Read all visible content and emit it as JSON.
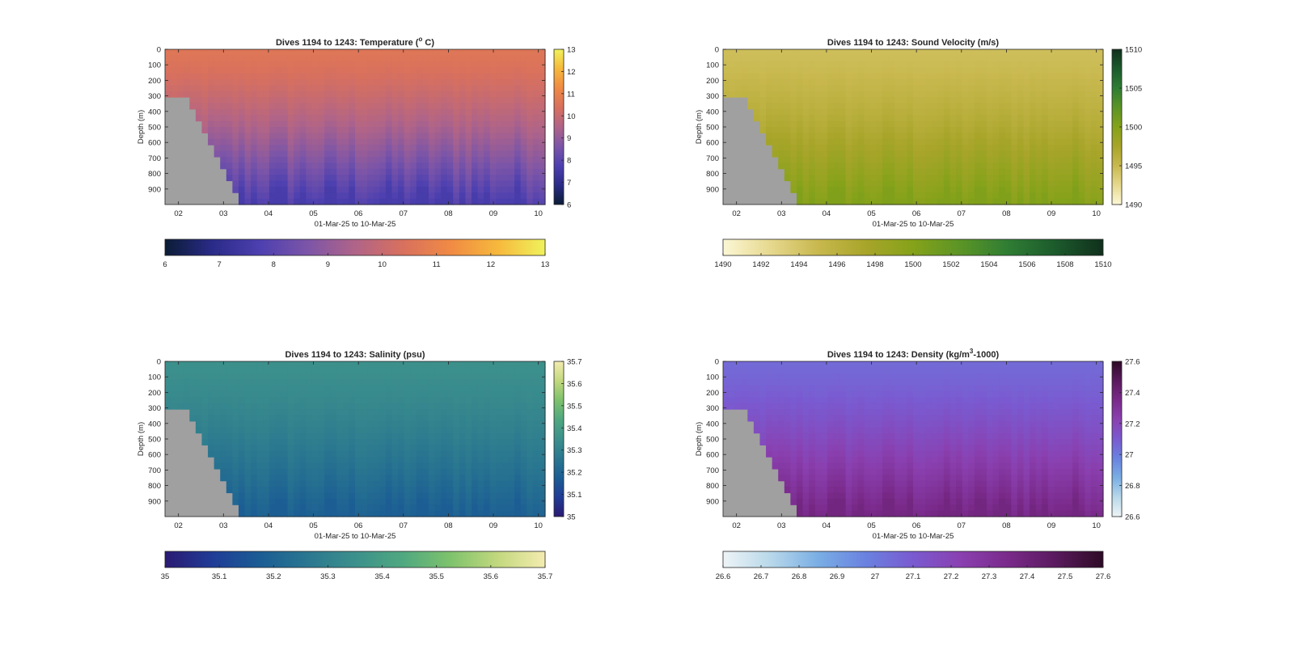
{
  "figure": {
    "xlabel": "01-Mar-25 to 10-Mar-25",
    "ylabel": "Depth (m)"
  },
  "chart_data": [
    {
      "type": "heatmap",
      "title": "Dives 1194 to 1243: Temperature (° C)",
      "title_parts": [
        "Dives 1194 to 1243: Temperature (",
        "o",
        " C)"
      ],
      "xlabel": "01-Mar-25 to 10-Mar-25",
      "ylabel": "Depth (m)",
      "x_ticks": [
        "02",
        "03",
        "04",
        "05",
        "06",
        "07",
        "08",
        "09",
        "10"
      ],
      "x_range": [
        1.7,
        10.15
      ],
      "y_ticks": [
        0,
        100,
        200,
        300,
        400,
        500,
        600,
        700,
        800,
        900
      ],
      "y_range": [
        0,
        1000
      ],
      "colorbar_range": [
        6,
        13
      ],
      "colorbar_ticks": [
        6,
        7,
        8,
        9,
        10,
        11,
        12,
        13
      ],
      "horizontal_colorbar_ticks": [
        6,
        7,
        8,
        9,
        10,
        11,
        12,
        13
      ],
      "colormap": [
        "#0b1c35",
        "#2a2b88",
        "#4d40b0",
        "#7c55a8",
        "#b06488",
        "#d8705e",
        "#f08a44",
        "#f6b83c",
        "#f0f25c"
      ],
      "surface_value": 10.6,
      "deep_value": 7.6,
      "no_data_color": "#a0a0a0"
    },
    {
      "type": "heatmap",
      "title": "Dives 1194 to 1243: Sound Velocity (m/s)",
      "title_parts": [
        "Dives 1194 to 1243: Sound Velocity (m/s)",
        "",
        ""
      ],
      "xlabel": "01-Mar-25 to 10-Mar-25",
      "ylabel": "Depth (m)",
      "x_ticks": [
        "02",
        "03",
        "04",
        "05",
        "06",
        "07",
        "08",
        "09",
        "10"
      ],
      "x_range": [
        1.7,
        10.15
      ],
      "y_ticks": [
        0,
        100,
        200,
        300,
        400,
        500,
        600,
        700,
        800,
        900
      ],
      "y_range": [
        0,
        1000
      ],
      "colorbar_range": [
        1490,
        1510
      ],
      "colorbar_ticks": [
        1490,
        1495,
        1500,
        1505,
        1510
      ],
      "horizontal_colorbar_ticks": [
        1490,
        1492,
        1494,
        1496,
        1498,
        1500,
        1502,
        1504,
        1506,
        1508,
        1510
      ],
      "colormap": [
        "#fcf7d5",
        "#e6d88e",
        "#c8b84e",
        "#a8a52a",
        "#85a21a",
        "#5b9426",
        "#2f7d34",
        "#1c5a2c",
        "#10301c"
      ],
      "surface_value": 1494.5,
      "deep_value": 1500.3,
      "no_data_color": "#a0a0a0"
    },
    {
      "type": "heatmap",
      "title": "Dives 1194 to 1243: Salinity (psu)",
      "title_parts": [
        "Dives 1194 to 1243: Salinity (psu)",
        "",
        ""
      ],
      "xlabel": "01-Mar-25 to 10-Mar-25",
      "ylabel": "Depth (m)",
      "x_ticks": [
        "02",
        "03",
        "04",
        "05",
        "06",
        "07",
        "08",
        "09",
        "10"
      ],
      "x_range": [
        1.7,
        10.15
      ],
      "y_ticks": [
        0,
        100,
        200,
        300,
        400,
        500,
        600,
        700,
        800,
        900
      ],
      "y_range": [
        0,
        1000
      ],
      "colorbar_range": [
        35,
        35.7
      ],
      "colorbar_ticks": [
        35,
        35.1,
        35.2,
        35.3,
        35.4,
        35.5,
        35.6,
        35.7
      ],
      "horizontal_colorbar_ticks": [
        35,
        35.1,
        35.2,
        35.3,
        35.4,
        35.5,
        35.6,
        35.7
      ],
      "colormap": [
        "#2a1a72",
        "#203c96",
        "#1b5d94",
        "#2a7790",
        "#3c908c",
        "#4fa880",
        "#7ec26c",
        "#c2d87e",
        "#f4ecb0"
      ],
      "surface_value": 35.35,
      "deep_value": 35.18,
      "no_data_color": "#a0a0a0"
    },
    {
      "type": "heatmap",
      "title": "Dives 1194 to 1243: Density (kg/m³-1000)",
      "title_parts": [
        "Dives 1194 to 1243: Density (kg/m",
        "3",
        "-1000)"
      ],
      "xlabel": "01-Mar-25 to 10-Mar-25",
      "ylabel": "Depth (m)",
      "x_ticks": [
        "02",
        "03",
        "04",
        "05",
        "06",
        "07",
        "08",
        "09",
        "10"
      ],
      "x_range": [
        1.7,
        10.15
      ],
      "y_ticks": [
        0,
        100,
        200,
        300,
        400,
        500,
        600,
        700,
        800,
        900
      ],
      "y_range": [
        0,
        1000
      ],
      "colorbar_range": [
        26.6,
        27.6
      ],
      "colorbar_ticks": [
        26.6,
        26.8,
        27,
        27.2,
        27.4,
        27.6
      ],
      "colorbar_tick_labels": [
        "26.6",
        "26.8",
        "27",
        "27.2",
        "27.4",
        "27.6"
      ],
      "horizontal_colorbar_ticks": [
        26.6,
        26.7,
        26.8,
        26.9,
        27,
        27.1,
        27.2,
        27.3,
        27.4,
        27.5,
        27.6
      ],
      "horizontal_colorbar_tick_labels": [
        "26.6",
        "26.7",
        "26.8",
        "26.9",
        "27",
        "27.1",
        "27.2",
        "27.3",
        "27.4",
        "27.5",
        "27.6"
      ],
      "colormap": [
        "#eef4f6",
        "#b8d8ea",
        "#7aaee4",
        "#6a82e0",
        "#7a5ad0",
        "#8a40b0",
        "#7a2a8a",
        "#5a1a5e",
        "#2e0a26"
      ],
      "surface_value": 27.05,
      "deep_value": 27.38,
      "no_data_color": "#a0a0a0"
    }
  ]
}
